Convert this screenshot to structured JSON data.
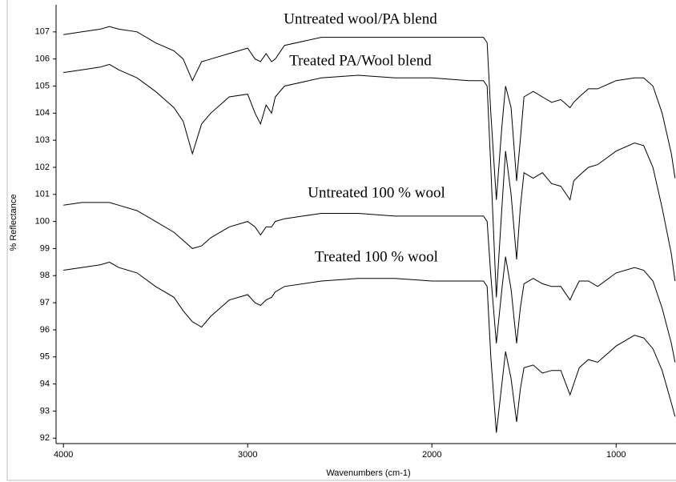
{
  "chart_data": {
    "type": "line",
    "xlabel": "Wavenumbers (cm-1)",
    "ylabel": "% Reflectance",
    "annotations": [
      "Untreated wool/PA blend",
      "Treated PA/Wool blend",
      "Untreated 100 % wool",
      "Treated 100 % wool"
    ],
    "x": [
      4000,
      3900,
      3800,
      3750,
      3700,
      3600,
      3500,
      3400,
      3350,
      3300,
      3250,
      3200,
      3100,
      3000,
      2960,
      2930,
      2900,
      2870,
      2850,
      2800,
      2600,
      2400,
      2200,
      2000,
      1800,
      1720,
      1700,
      1680,
      1650,
      1620,
      1600,
      1570,
      1540,
      1520,
      1500,
      1450,
      1400,
      1350,
      1300,
      1250,
      1230,
      1200,
      1150,
      1100,
      1000,
      900,
      850,
      800,
      750,
      700,
      680
    ],
    "series": [
      {
        "color": "#000000",
        "values": [
          106.9,
          107.0,
          107.1,
          107.2,
          107.1,
          107.0,
          106.6,
          106.3,
          106.0,
          105.2,
          105.9,
          106.0,
          106.2,
          106.4,
          106.0,
          105.9,
          106.2,
          105.9,
          106.0,
          106.5,
          106.8,
          106.8,
          106.8,
          106.8,
          106.8,
          106.8,
          106.6,
          104.0,
          100.8,
          103.5,
          105.0,
          104.2,
          101.5,
          103.0,
          104.6,
          104.8,
          104.6,
          104.4,
          104.5,
          104.2,
          104.4,
          104.6,
          104.9,
          104.9,
          105.2,
          105.3,
          105.3,
          105.0,
          104.0,
          102.5,
          101.6
        ]
      },
      {
        "color": "#000000",
        "values": [
          105.5,
          105.6,
          105.7,
          105.8,
          105.6,
          105.3,
          104.8,
          104.2,
          103.7,
          102.5,
          103.6,
          104.0,
          104.6,
          104.7,
          104.0,
          103.6,
          104.3,
          104.0,
          104.6,
          105.0,
          105.3,
          105.4,
          105.3,
          105.3,
          105.2,
          105.2,
          105.0,
          102.0,
          97.2,
          100.5,
          102.6,
          101.0,
          98.6,
          100.5,
          101.8,
          101.6,
          101.8,
          101.4,
          101.3,
          100.8,
          101.5,
          101.7,
          102.0,
          102.1,
          102.6,
          102.9,
          102.8,
          102.0,
          100.5,
          98.8,
          97.8
        ]
      },
      {
        "color": "#000000",
        "values": [
          100.6,
          100.7,
          100.7,
          100.7,
          100.6,
          100.4,
          100.0,
          99.6,
          99.3,
          99.0,
          99.1,
          99.4,
          99.8,
          100.0,
          99.8,
          99.5,
          99.8,
          99.8,
          100.0,
          100.1,
          100.3,
          100.3,
          100.2,
          100.2,
          100.2,
          100.2,
          100.0,
          98.0,
          95.5,
          97.5,
          98.7,
          97.5,
          95.5,
          96.8,
          97.7,
          97.9,
          97.7,
          97.6,
          97.6,
          97.1,
          97.4,
          97.8,
          97.8,
          97.6,
          98.1,
          98.3,
          98.2,
          97.8,
          96.8,
          95.5,
          94.8
        ]
      },
      {
        "color": "#000000",
        "values": [
          98.2,
          98.3,
          98.4,
          98.5,
          98.3,
          98.1,
          97.6,
          97.2,
          96.7,
          96.3,
          96.1,
          96.5,
          97.1,
          97.3,
          97.0,
          96.9,
          97.1,
          97.2,
          97.4,
          97.6,
          97.8,
          97.9,
          97.9,
          97.8,
          97.8,
          97.8,
          97.6,
          95.0,
          92.2,
          94.0,
          95.2,
          94.2,
          92.6,
          93.8,
          94.6,
          94.7,
          94.4,
          94.5,
          94.5,
          93.6,
          94.0,
          94.6,
          94.9,
          94.8,
          95.4,
          95.8,
          95.7,
          95.3,
          94.5,
          93.3,
          92.8
        ]
      }
    ],
    "xlim": [
      4040,
      675
    ],
    "xticks": [
      4000,
      3000,
      2000,
      1000
    ],
    "ylim": [
      91.8,
      108
    ],
    "yticks": [
      92,
      93,
      94,
      95,
      96,
      97,
      98,
      99,
      100,
      101,
      102,
      103,
      104,
      105,
      106,
      107
    ],
    "grid": false
  }
}
